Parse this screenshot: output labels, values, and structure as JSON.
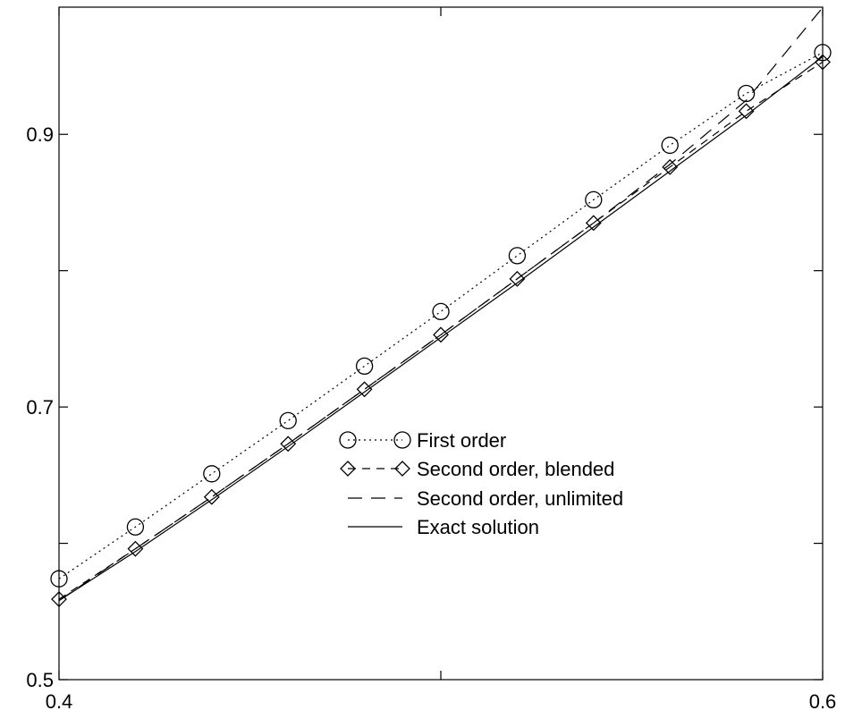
{
  "chart_data": {
    "type": "line",
    "title": "",
    "xlabel": "",
    "ylabel": "",
    "xlim": [
      0.4,
      0.6
    ],
    "ylim": [
      0.5,
      0.9933
    ],
    "x_ticks": [
      0.4,
      0.5,
      0.6
    ],
    "x_tick_labels": [
      "0.4",
      "",
      "0.6"
    ],
    "y_ticks": [
      0.5,
      0.6,
      0.7,
      0.8,
      0.9
    ],
    "y_tick_labels": [
      "0.5",
      "",
      "0.7",
      "",
      "0.9"
    ],
    "grid": false,
    "legend_position": "center",
    "series": [
      {
        "name": "First order",
        "style": "dotted",
        "marker": "circle",
        "x": [
          0.4,
          0.42,
          0.44,
          0.46,
          0.48,
          0.5,
          0.52,
          0.54,
          0.56,
          0.58,
          0.6
        ],
        "y": [
          0.574,
          0.612,
          0.651,
          0.69,
          0.73,
          0.77,
          0.811,
          0.852,
          0.892,
          0.93,
          0.96
        ]
      },
      {
        "name": "Second order, blended",
        "style": "dashed",
        "marker": "diamond",
        "x": [
          0.4,
          0.42,
          0.44,
          0.46,
          0.48,
          0.5,
          0.52,
          0.54,
          0.56,
          0.58,
          0.6
        ],
        "y": [
          0.559,
          0.596,
          0.634,
          0.673,
          0.713,
          0.753,
          0.794,
          0.835,
          0.876,
          0.917,
          0.953
        ]
      },
      {
        "name": "Second order, unlimited",
        "style": "longdash",
        "marker": "none",
        "x": [
          0.4,
          0.42,
          0.44,
          0.46,
          0.48,
          0.5,
          0.52,
          0.54,
          0.56,
          0.58,
          0.6
        ],
        "y": [
          0.558,
          0.596,
          0.634,
          0.673,
          0.713,
          0.753,
          0.794,
          0.835,
          0.878,
          0.925,
          0.993
        ]
      },
      {
        "name": "Exact solution",
        "style": "solid",
        "marker": "none",
        "x": [
          0.4,
          0.42,
          0.44,
          0.46,
          0.48,
          0.5,
          0.52,
          0.54,
          0.56,
          0.58,
          0.6
        ],
        "y": [
          0.558,
          0.594,
          0.632,
          0.671,
          0.711,
          0.751,
          0.791,
          0.832,
          0.873,
          0.914,
          0.957
        ]
      }
    ]
  }
}
